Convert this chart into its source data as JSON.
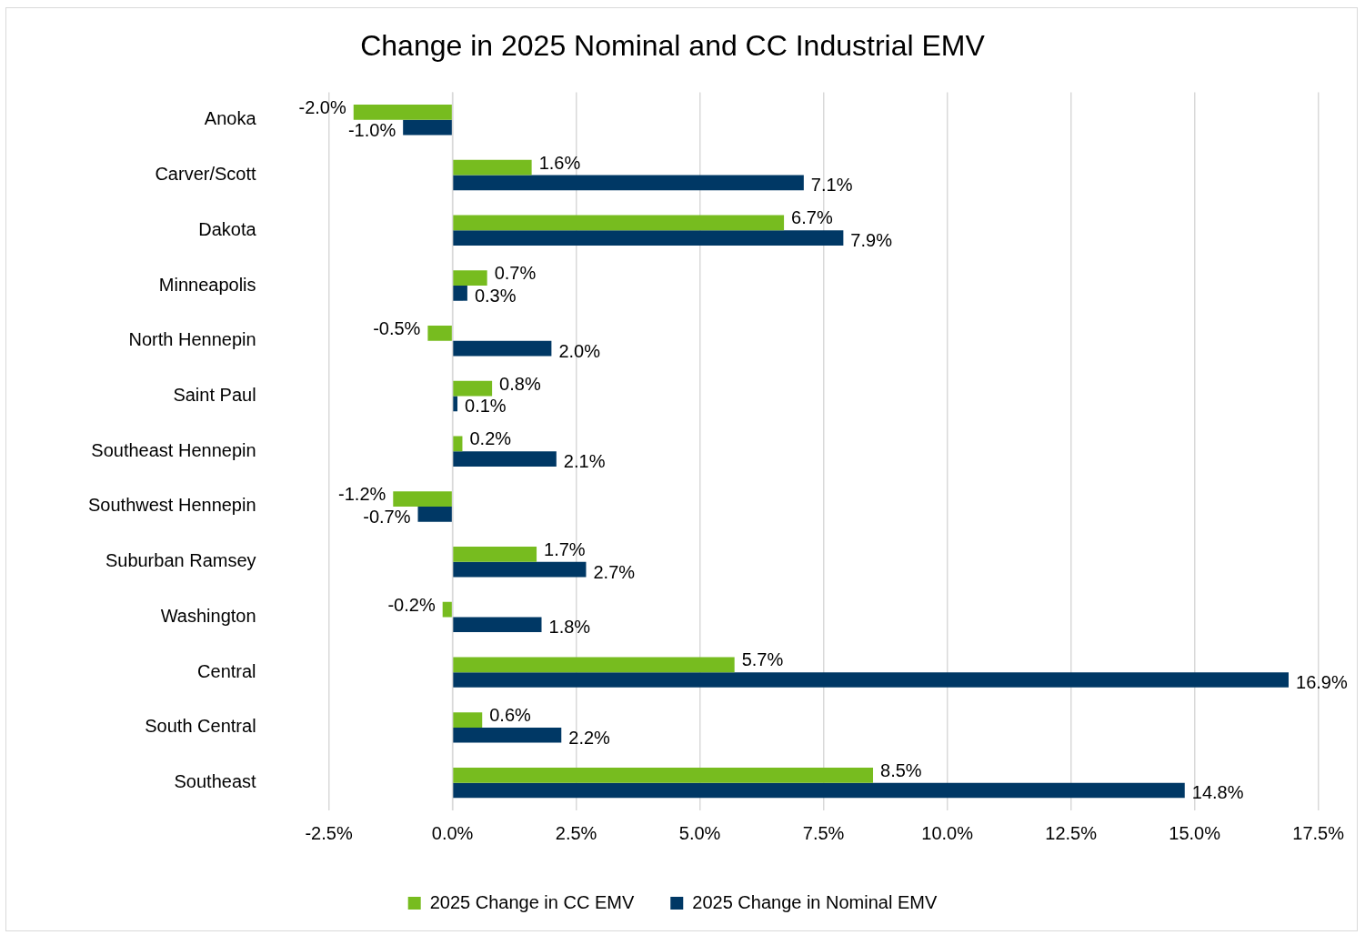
{
  "chart_data": {
    "type": "bar",
    "orientation": "horizontal",
    "title": "Change in 2025 Nominal and CC Industrial EMV",
    "categories": [
      "Anoka",
      "Carver/Scott",
      "Dakota",
      "Minneapolis",
      "North Hennepin",
      "Saint Paul",
      "Southeast Hennepin",
      "Southwest Hennepin",
      "Suburban Ramsey",
      "Washington",
      "Central",
      "South Central",
      "Southeast"
    ],
    "series": [
      {
        "name": "2025 Change in CC EMV",
        "color": "#77bc1f",
        "values": [
          -2.0,
          1.6,
          6.7,
          0.7,
          -0.5,
          0.8,
          0.2,
          -1.2,
          1.7,
          -0.2,
          5.7,
          0.6,
          8.5
        ],
        "value_labels": [
          "-2.0%",
          "1.6%",
          "6.7%",
          "0.7%",
          "-0.5%",
          "0.8%",
          "0.2%",
          "-1.2%",
          "1.7%",
          "-0.2%",
          "5.7%",
          "0.6%",
          "8.5%"
        ]
      },
      {
        "name": "2025 Change in Nominal EMV",
        "color": "#003865",
        "values": [
          -1.0,
          7.1,
          7.9,
          0.3,
          2.0,
          0.1,
          2.1,
          -0.7,
          2.7,
          1.8,
          16.9,
          2.2,
          14.8
        ],
        "value_labels": [
          "-1.0%",
          "7.1%",
          "7.9%",
          "0.3%",
          "2.0%",
          "0.1%",
          "2.1%",
          "-0.7%",
          "2.7%",
          "1.8%",
          "16.9%",
          "2.2%",
          "14.8%"
        ]
      }
    ],
    "xlim": [
      -2.5,
      17.5
    ],
    "xticks": [
      {
        "value": -2.5,
        "label": "-2.5%"
      },
      {
        "value": 0,
        "label": "0.0%"
      },
      {
        "value": 2.5,
        "label": "2.5%"
      },
      {
        "value": 5,
        "label": "5.0%"
      },
      {
        "value": 7.5,
        "label": "7.5%"
      },
      {
        "value": 10,
        "label": "10.0%"
      },
      {
        "value": 12.5,
        "label": "12.5%"
      },
      {
        "value": 15,
        "label": "15.0%"
      },
      {
        "value": 17.5,
        "label": "17.5%"
      }
    ],
    "grid": "x",
    "legend": "bottom"
  }
}
